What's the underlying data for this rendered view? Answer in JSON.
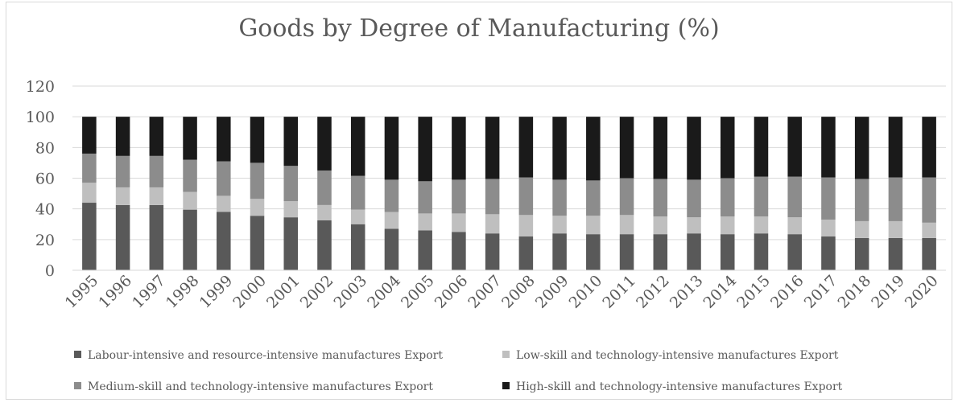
{
  "chart_data": {
    "type": "bar",
    "stacked": true,
    "title": "Goods by Degree of Manufacturing (%)",
    "xlabel": "",
    "ylabel": "",
    "ylim": [
      0,
      120
    ],
    "yticks": [
      0,
      20,
      40,
      60,
      80,
      100,
      120
    ],
    "grid": true,
    "legend_position": "bottom",
    "categories": [
      "1995",
      "1996",
      "1997",
      "1998",
      "1999",
      "2000",
      "2001",
      "2002",
      "2003",
      "2004",
      "2005",
      "2006",
      "2007",
      "2008",
      "2009",
      "2010",
      "2011",
      "2012",
      "2013",
      "2014",
      "2015",
      "2016",
      "2017",
      "2018",
      "2019",
      "2020"
    ],
    "series": [
      {
        "name": "Labour-intensive and resource-intensive manufactures  Export",
        "color": "#595959",
        "values": [
          44,
          42.5,
          42.5,
          39.5,
          38,
          35.5,
          34.5,
          32.5,
          30,
          27,
          26,
          25,
          24,
          22,
          24,
          23.5,
          23.5,
          23.5,
          24,
          23.5,
          24,
          23.5,
          22,
          21,
          21,
          21
        ]
      },
      {
        "name": "Low-skill and technology-intensive manufactures  Export",
        "color": "#bfbfbf",
        "values": [
          13,
          11.5,
          11.5,
          11.5,
          10.5,
          11,
          10.5,
          10,
          9.5,
          11,
          11,
          12,
          12.5,
          14,
          11.5,
          12,
          12.5,
          11.5,
          10.5,
          11.5,
          11,
          11,
          11,
          11,
          11,
          10
        ]
      },
      {
        "name": "Medium-skill and technology-intensive manufactures  Export",
        "color": "#8c8c8c",
        "values": [
          19,
          20.5,
          20.5,
          21,
          22.5,
          23.5,
          23,
          22.5,
          22,
          21,
          21,
          22,
          23,
          24.5,
          23.5,
          23,
          24,
          24.5,
          24.5,
          25,
          26,
          26.5,
          27.5,
          27.5,
          28.5,
          29.5
        ]
      },
      {
        "name": "High-skill and technology-intensive manufactures  Export",
        "color": "#1a1a1a",
        "values": [
          24,
          25.5,
          25.5,
          28,
          29,
          30,
          32,
          35,
          38.5,
          41,
          42,
          41,
          40.5,
          39.5,
          41,
          41.5,
          40,
          40.5,
          41,
          40,
          39,
          39,
          39.5,
          40.5,
          39.5,
          39.5
        ]
      }
    ]
  }
}
